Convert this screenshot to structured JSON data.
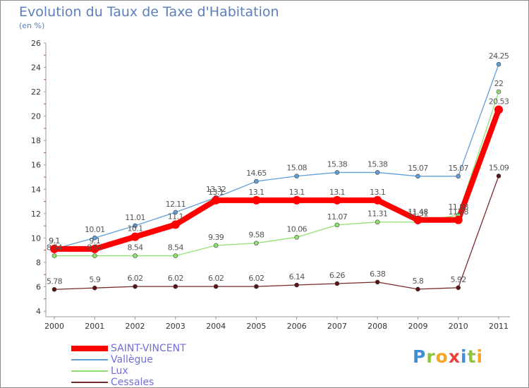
{
  "title": "Evolution du Taux de Taxe d'Habitation",
  "subtitle": "(en %)",
  "logo": {
    "text": "Proxiti",
    "letters": [
      {
        "ch": "P",
        "color": "#3f8fd6"
      },
      {
        "ch": "r",
        "color": "#8bc53f"
      },
      {
        "ch": "o",
        "color": "#f5a623"
      },
      {
        "ch": "x",
        "color": "#e8423a"
      },
      {
        "ch": "i",
        "color": "#3f8fd6"
      },
      {
        "ch": "t",
        "color": "#8bc53f"
      },
      {
        "ch": "i",
        "color": "#f5a623"
      }
    ]
  },
  "chart_data": {
    "type": "line",
    "title": "Evolution du Taux de Taxe d'Habitation",
    "ylabel": "(en %)",
    "xlabel": "",
    "ylim": [
      4,
      26
    ],
    "ytick_step": 2,
    "grid": false,
    "legend_position": "bottom-left",
    "categories": [
      "2000",
      "2001",
      "2002",
      "2003",
      "2004",
      "2005",
      "2006",
      "2007",
      "2008",
      "2009",
      "2010",
      "2011"
    ],
    "series": [
      {
        "name": "SAINT-VINCENT",
        "color": "#ff0000",
        "values": [
          9.1,
          9.1,
          10.1,
          11.1,
          13.1,
          13.1,
          13.1,
          13.1,
          13.1,
          11.48,
          11.48,
          20.53
        ],
        "labels": [
          "9.1",
          "9.1",
          "10.1",
          "11.1",
          "13.1",
          "13.1",
          "13.1",
          "13.1",
          "13.1",
          "11.48",
          "11.48",
          "20.53"
        ]
      },
      {
        "name": "Vallègue",
        "color": "#5f9fd8",
        "values": [
          9.1,
          10.01,
          11.01,
          12.11,
          13.32,
          14.65,
          15.08,
          15.38,
          15.38,
          15.07,
          15.07,
          24.25
        ],
        "labels": [
          "9.1",
          "10.01",
          "11.01",
          "12.11",
          "13.32",
          "14.65",
          "15.08",
          "15.38",
          "15.38",
          "15.07",
          "15.07",
          "24.25"
        ]
      },
      {
        "name": "Lux",
        "color": "#8fe06f",
        "values": [
          8.54,
          8.54,
          8.54,
          8.54,
          9.39,
          9.58,
          10.06,
          11.07,
          11.31,
          11.31,
          11.88,
          22
        ],
        "labels": [
          "8.54",
          "8.54",
          "8.54",
          "8.54",
          "9.39",
          "9.58",
          "10.06",
          "11.07",
          "11.31",
          "11.31",
          "11.88",
          "22"
        ]
      },
      {
        "name": "Cessales",
        "color": "#7a2a2a",
        "values": [
          5.78,
          5.9,
          6.02,
          6.02,
          6.02,
          6.02,
          6.14,
          6.26,
          6.38,
          5.8,
          5.92,
          15.09
        ],
        "labels": [
          "5.78",
          "5.9",
          "6.02",
          "6.02",
          "6.02",
          "6.02",
          "6.14",
          "6.26",
          "6.38",
          "5.8",
          "5.92",
          "15.09"
        ]
      }
    ]
  }
}
